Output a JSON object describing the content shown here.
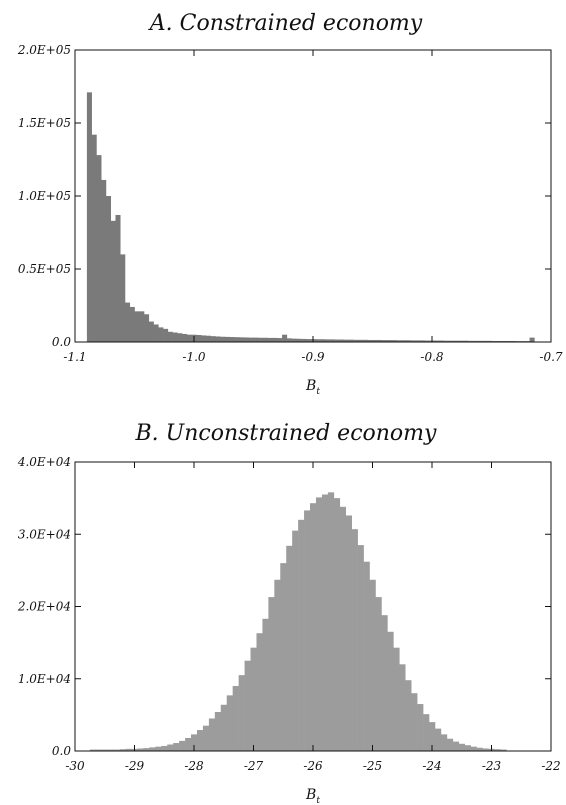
{
  "chart_data": [
    {
      "type": "bar",
      "title": "A. Constrained economy",
      "xlabel": "B",
      "xlabel_sub": "t",
      "ylabel": "",
      "xlim": [
        -1.1,
        -0.7
      ],
      "ylim": [
        0,
        200000
      ],
      "xticks": [
        -1.1,
        -1.0,
        -0.9,
        -0.8,
        -0.7
      ],
      "xtick_labels": [
        "-1.1",
        "-1.0",
        "-0.9",
        "-0.8",
        "-0.7"
      ],
      "yticks": [
        0,
        50000,
        100000,
        150000,
        200000
      ],
      "ytick_labels": [
        "0.0",
        "0.5E+05",
        "1.0E+05",
        "1.5E+05",
        "2.0E+05"
      ],
      "bin_width": 0.004,
      "bar_color": "#7a7a7a",
      "bins": [
        {
          "x": -1.088,
          "y": 171000
        },
        {
          "x": -1.084,
          "y": 142000
        },
        {
          "x": -1.08,
          "y": 128000
        },
        {
          "x": -1.076,
          "y": 111000
        },
        {
          "x": -1.072,
          "y": 100000
        },
        {
          "x": -1.068,
          "y": 83000
        },
        {
          "x": -1.064,
          "y": 87000
        },
        {
          "x": -1.06,
          "y": 60000
        },
        {
          "x": -1.056,
          "y": 27000
        },
        {
          "x": -1.052,
          "y": 24000
        },
        {
          "x": -1.048,
          "y": 21000
        },
        {
          "x": -1.044,
          "y": 21000
        },
        {
          "x": -1.04,
          "y": 19000
        },
        {
          "x": -1.036,
          "y": 14000
        },
        {
          "x": -1.032,
          "y": 12000
        },
        {
          "x": -1.028,
          "y": 10000
        },
        {
          "x": -1.024,
          "y": 9000
        },
        {
          "x": -1.02,
          "y": 7000
        },
        {
          "x": -1.016,
          "y": 6500
        },
        {
          "x": -1.012,
          "y": 6000
        },
        {
          "x": -1.008,
          "y": 5500
        },
        {
          "x": -1.004,
          "y": 5000
        },
        {
          "x": -1.0,
          "y": 5000
        },
        {
          "x": -0.996,
          "y": 4800
        },
        {
          "x": -0.992,
          "y": 4500
        },
        {
          "x": -0.988,
          "y": 4300
        },
        {
          "x": -0.984,
          "y": 4000
        },
        {
          "x": -0.98,
          "y": 3800
        },
        {
          "x": -0.976,
          "y": 3600
        },
        {
          "x": -0.972,
          "y": 3500
        },
        {
          "x": -0.968,
          "y": 3400
        },
        {
          "x": -0.964,
          "y": 3300
        },
        {
          "x": -0.96,
          "y": 3200
        },
        {
          "x": -0.956,
          "y": 3100
        },
        {
          "x": -0.952,
          "y": 3000
        },
        {
          "x": -0.948,
          "y": 3000
        },
        {
          "x": -0.944,
          "y": 2900
        },
        {
          "x": -0.94,
          "y": 2900
        },
        {
          "x": -0.936,
          "y": 2800
        },
        {
          "x": -0.932,
          "y": 2800
        },
        {
          "x": -0.928,
          "y": 2700
        },
        {
          "x": -0.924,
          "y": 5000
        },
        {
          "x": -0.92,
          "y": 2500
        },
        {
          "x": -0.916,
          "y": 2300
        },
        {
          "x": -0.912,
          "y": 2200
        },
        {
          "x": -0.908,
          "y": 2100
        },
        {
          "x": -0.904,
          "y": 2000
        },
        {
          "x": -0.9,
          "y": 2000
        },
        {
          "x": -0.896,
          "y": 1900
        },
        {
          "x": -0.892,
          "y": 1900
        },
        {
          "x": -0.888,
          "y": 1800
        },
        {
          "x": -0.884,
          "y": 1800
        },
        {
          "x": -0.88,
          "y": 1700
        },
        {
          "x": -0.876,
          "y": 1700
        },
        {
          "x": -0.872,
          "y": 1600
        },
        {
          "x": -0.868,
          "y": 1600
        },
        {
          "x": -0.864,
          "y": 1500
        },
        {
          "x": -0.86,
          "y": 1500
        },
        {
          "x": -0.856,
          "y": 1500
        },
        {
          "x": -0.852,
          "y": 1400
        },
        {
          "x": -0.848,
          "y": 1400
        },
        {
          "x": -0.844,
          "y": 1400
        },
        {
          "x": -0.84,
          "y": 1300
        },
        {
          "x": -0.836,
          "y": 1300
        },
        {
          "x": -0.832,
          "y": 1300
        },
        {
          "x": -0.828,
          "y": 1200
        },
        {
          "x": -0.824,
          "y": 1200
        },
        {
          "x": -0.82,
          "y": 1200
        },
        {
          "x": -0.816,
          "y": 1100
        },
        {
          "x": -0.812,
          "y": 1100
        },
        {
          "x": -0.808,
          "y": 1100
        },
        {
          "x": -0.804,
          "y": 1000
        },
        {
          "x": -0.8,
          "y": 1000
        },
        {
          "x": -0.796,
          "y": 1000
        },
        {
          "x": -0.792,
          "y": 1000
        },
        {
          "x": -0.788,
          "y": 900
        },
        {
          "x": -0.784,
          "y": 900
        },
        {
          "x": -0.78,
          "y": 900
        },
        {
          "x": -0.776,
          "y": 900
        },
        {
          "x": -0.772,
          "y": 900
        },
        {
          "x": -0.768,
          "y": 800
        },
        {
          "x": -0.764,
          "y": 800
        },
        {
          "x": -0.76,
          "y": 800
        },
        {
          "x": -0.756,
          "y": 800
        },
        {
          "x": -0.752,
          "y": 800
        },
        {
          "x": -0.748,
          "y": 700
        },
        {
          "x": -0.744,
          "y": 700
        },
        {
          "x": -0.74,
          "y": 700
        },
        {
          "x": -0.736,
          "y": 700
        },
        {
          "x": -0.732,
          "y": 700
        },
        {
          "x": -0.728,
          "y": 600
        },
        {
          "x": -0.724,
          "y": 600
        },
        {
          "x": -0.72,
          "y": 600
        },
        {
          "x": -0.716,
          "y": 3000
        }
      ]
    },
    {
      "type": "bar",
      "title": "B. Unconstrained economy",
      "xlabel": "B",
      "xlabel_sub": "t",
      "ylabel": "",
      "xlim": [
        -30,
        -22
      ],
      "ylim": [
        0,
        40000
      ],
      "xticks": [
        -30,
        -29,
        -28,
        -27,
        -26,
        -25,
        -24,
        -23,
        -22
      ],
      "xtick_labels": [
        "-30",
        "-29",
        "-28",
        "-27",
        "-26",
        "-25",
        "-24",
        "-23",
        "-22"
      ],
      "yticks": [
        0,
        10000,
        20000,
        30000,
        40000
      ],
      "ytick_labels": [
        "0.0",
        "1.0E+04",
        "2.0E+04",
        "3.0E+04",
        "4.0E+04"
      ],
      "bin_width": 0.1,
      "bar_color": "#9c9c9c",
      "bins": [
        {
          "x": -29.7,
          "y": 200
        },
        {
          "x": -29.6,
          "y": 200
        },
        {
          "x": -29.5,
          "y": 200
        },
        {
          "x": -29.4,
          "y": 200
        },
        {
          "x": -29.3,
          "y": 200
        },
        {
          "x": -29.2,
          "y": 250
        },
        {
          "x": -29.1,
          "y": 300
        },
        {
          "x": -29.0,
          "y": 300
        },
        {
          "x": -28.9,
          "y": 350
        },
        {
          "x": -28.8,
          "y": 400
        },
        {
          "x": -28.7,
          "y": 500
        },
        {
          "x": -28.6,
          "y": 600
        },
        {
          "x": -28.5,
          "y": 700
        },
        {
          "x": -28.4,
          "y": 900
        },
        {
          "x": -28.3,
          "y": 1100
        },
        {
          "x": -28.2,
          "y": 1400
        },
        {
          "x": -28.1,
          "y": 1800
        },
        {
          "x": -28.0,
          "y": 2300
        },
        {
          "x": -27.9,
          "y": 2900
        },
        {
          "x": -27.8,
          "y": 3500
        },
        {
          "x": -27.7,
          "y": 4500
        },
        {
          "x": -27.6,
          "y": 5400
        },
        {
          "x": -27.5,
          "y": 6400
        },
        {
          "x": -27.4,
          "y": 7700
        },
        {
          "x": -27.3,
          "y": 9000
        },
        {
          "x": -27.2,
          "y": 10500
        },
        {
          "x": -27.1,
          "y": 12500
        },
        {
          "x": -27.0,
          "y": 14300
        },
        {
          "x": -26.9,
          "y": 16300
        },
        {
          "x": -26.8,
          "y": 18300
        },
        {
          "x": -26.7,
          "y": 21300
        },
        {
          "x": -26.6,
          "y": 23700
        },
        {
          "x": -26.5,
          "y": 26000
        },
        {
          "x": -26.4,
          "y": 28400
        },
        {
          "x": -26.3,
          "y": 30500
        },
        {
          "x": -26.2,
          "y": 32000
        },
        {
          "x": -26.1,
          "y": 33300
        },
        {
          "x": -26.0,
          "y": 34300
        },
        {
          "x": -25.9,
          "y": 35100
        },
        {
          "x": -25.8,
          "y": 35500
        },
        {
          "x": -25.7,
          "y": 35800
        },
        {
          "x": -25.6,
          "y": 35000
        },
        {
          "x": -25.5,
          "y": 33800
        },
        {
          "x": -25.4,
          "y": 32600
        },
        {
          "x": -25.3,
          "y": 30700
        },
        {
          "x": -25.2,
          "y": 28500
        },
        {
          "x": -25.1,
          "y": 26200
        },
        {
          "x": -25.0,
          "y": 23700
        },
        {
          "x": -24.9,
          "y": 21300
        },
        {
          "x": -24.8,
          "y": 18800
        },
        {
          "x": -24.7,
          "y": 16500
        },
        {
          "x": -24.6,
          "y": 14300
        },
        {
          "x": -24.5,
          "y": 12000
        },
        {
          "x": -24.4,
          "y": 9800
        },
        {
          "x": -24.3,
          "y": 8000
        },
        {
          "x": -24.2,
          "y": 6500
        },
        {
          "x": -24.1,
          "y": 5100
        },
        {
          "x": -24.0,
          "y": 4000
        },
        {
          "x": -23.9,
          "y": 3100
        },
        {
          "x": -23.8,
          "y": 2300
        },
        {
          "x": -23.7,
          "y": 1700
        },
        {
          "x": -23.6,
          "y": 1300
        },
        {
          "x": -23.5,
          "y": 1000
        },
        {
          "x": -23.4,
          "y": 800
        },
        {
          "x": -23.3,
          "y": 600
        },
        {
          "x": -23.2,
          "y": 450
        },
        {
          "x": -23.1,
          "y": 350
        },
        {
          "x": -23.0,
          "y": 300
        },
        {
          "x": -22.9,
          "y": 250
        },
        {
          "x": -22.8,
          "y": 200
        }
      ]
    }
  ]
}
